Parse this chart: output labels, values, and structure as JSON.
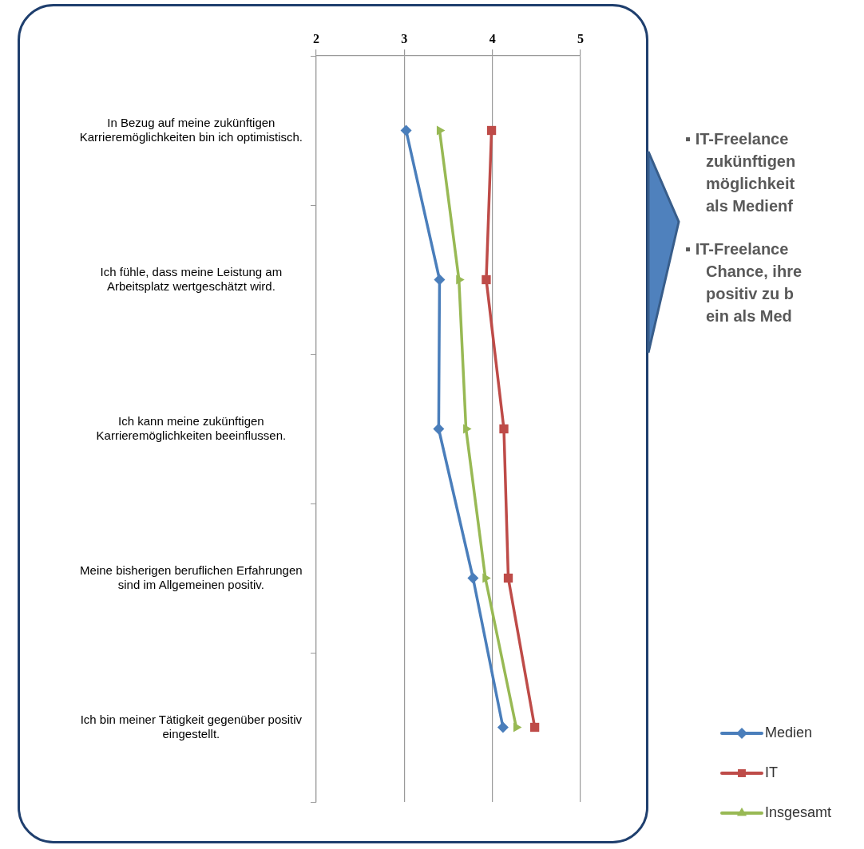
{
  "chart_data": {
    "type": "line",
    "orientation": "horizontal",
    "categories": [
      "In Bezug auf meine zukünftigen Karrieremöglichkeiten bin ich optimistisch.",
      "Ich fühle, dass meine Leistung am Arbeitsplatz wertgeschätzt wird.",
      "Ich kann meine zukünftigen Karrieremöglichkeiten beeinflussen.",
      "Meine bisherigen beruflichen Erfahrungen sind im Allgemeinen positiv.",
      "Ich bin meiner Tätigkeit gegenüber positiv eingestellt."
    ],
    "series": [
      {
        "name": "Medien",
        "color": "#4a7ebb",
        "marker": "diamond",
        "values": [
          3.02,
          3.4,
          3.39,
          3.78,
          4.12
        ]
      },
      {
        "name": "IT",
        "color": "#be4b48",
        "marker": "square",
        "values": [
          3.99,
          3.93,
          4.13,
          4.18,
          4.48
        ]
      },
      {
        "name": "Insgesamt",
        "color": "#98b954",
        "marker": "triangle",
        "values": [
          3.4,
          3.62,
          3.7,
          3.92,
          4.27
        ]
      }
    ],
    "xlim": [
      2,
      5
    ],
    "xticks": [
      2,
      3,
      4,
      5
    ],
    "grid": "x",
    "legend": "bottom right",
    "annotations": [
      "▪ IT-Freelance\nzukünftigen\nmöglichkeit\nals Medienf",
      "▪ IT-Freelance\nChance, ihre\npositiv zu b\nein als Med"
    ]
  }
}
